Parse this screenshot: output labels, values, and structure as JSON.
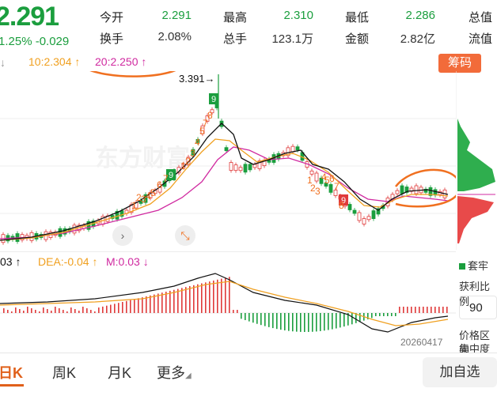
{
  "quote": {
    "price": "2.291",
    "change_line": "1.25% -0.029"
  },
  "stats": [
    {
      "label": "今开",
      "value": "2.291",
      "color": "#1b9e3e"
    },
    {
      "label": "最高",
      "value": "2.310",
      "color": "#1b9e3e"
    },
    {
      "label": "最低",
      "value": "2.286",
      "color": "#1b9e3e"
    },
    {
      "label": "总值",
      "value": ""
    },
    {
      "label": "换手",
      "value": "2.08%",
      "color": "#222222"
    },
    {
      "label": "总手",
      "value": "123.1万",
      "color": "#222222"
    },
    {
      "label": "金额",
      "value": "2.82亿",
      "color": "#222222"
    },
    {
      "label": "流值",
      "value": ""
    }
  ],
  "ma": {
    "ma10": "10:2.304 ↑",
    "ma20": "20:2.250 ↑"
  },
  "chip_button": "筹码",
  "high_marker": "3.391→",
  "watermark": "东方财富",
  "macd": {
    "dif": "03 ↑",
    "dea": "DEA:-0.04 ↑",
    "m": "M:0.03 ↓"
  },
  "date_label": "20260417",
  "side_panel": {
    "legend": "套牢",
    "profit_label": "获利比例",
    "profit_value": "90",
    "price_range": "价格区间",
    "concentration": "集中度"
  },
  "tabs": [
    {
      "label": "日K",
      "active": true
    },
    {
      "label": "周K",
      "active": false
    },
    {
      "label": "月K",
      "active": false
    },
    {
      "label": "更多",
      "active": false
    }
  ],
  "add_button": "加自选",
  "colors": {
    "up": "#e03a3a",
    "down": "#1b9e3e",
    "ma5": "#111111",
    "ma10": "#f0a020",
    "ma20": "#d02aa0",
    "annotation": "#f07020"
  }
}
